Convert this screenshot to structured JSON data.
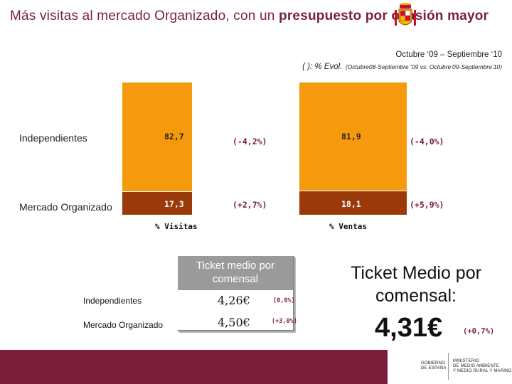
{
  "slide": {
    "title_part1": "Más visitas al mercado Organizado, con un ",
    "title_bold": "presupuesto por ocasión mayor",
    "period": "Octubre ‘09 – Septiembre ‘10",
    "evol_note_big": "( ): % Evol.",
    "evol_note_small": "(Octubre08-Septiembre ‘09 vs. Octubre’09-Septiembre’10)"
  },
  "rows": {
    "independientes": "Independientes",
    "mercado": "Mercado Organizado"
  },
  "chart_data": {
    "type": "bar",
    "stacked": true,
    "categories": [
      "% Visitas",
      "% Ventas"
    ],
    "series": [
      {
        "name": "Independientes",
        "values": [
          82.7,
          81.9
        ],
        "labels": [
          "82,7",
          "81,9"
        ],
        "evol": [
          "(-4,2%)",
          "(-4,0%)"
        ],
        "color": "#f59a0c"
      },
      {
        "name": "Mercado Organizado",
        "values": [
          17.3,
          18.1
        ],
        "labels": [
          "17,3",
          "18,1"
        ],
        "evol": [
          "(+2,7%)",
          "(+5,9%)"
        ],
        "color": "#9a3a0a"
      }
    ],
    "ylim": [
      0,
      100
    ]
  },
  "ticket": {
    "heading": "Ticket medio por comensal",
    "rows": [
      {
        "label": "Independientes",
        "value": "4,26€",
        "evol": "(0,0%)"
      },
      {
        "label": "Mercado Organizado",
        "value": "4,50€",
        "evol": "(+3,0%)"
      }
    ]
  },
  "ticket_total": {
    "title": "Ticket Medio por comensal:",
    "value": "4,31€",
    "evol": "(+0,7%)"
  },
  "footer": {
    "gov_line1": "Gobierno",
    "gov_line2": "de España",
    "ministry_line1": "Ministerio",
    "ministry_line2": "de Medio Ambiente",
    "ministry_line3": "y Medio Rural y Marino",
    "accent_color": "#7a1e3c"
  }
}
